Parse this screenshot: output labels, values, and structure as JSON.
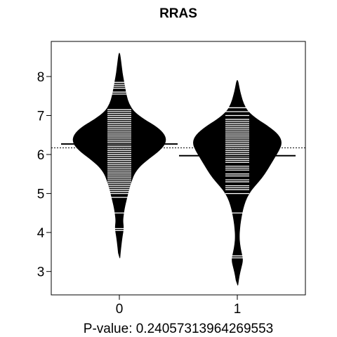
{
  "chart_data": {
    "type": "beanplot",
    "title": "RRAS",
    "xlabel": "P-value: 0.24057313964269553",
    "ylabel": "",
    "ylim": [
      2.4,
      8.9
    ],
    "yticks": [
      3,
      4,
      5,
      6,
      7,
      8
    ],
    "categories": [
      "0",
      "1"
    ],
    "overall_mean": 6.17,
    "grid": false,
    "beans": [
      {
        "category": "0",
        "mean": 6.27,
        "density": [
          [
            3.35,
            0.01
          ],
          [
            3.6,
            0.03
          ],
          [
            3.9,
            0.06
          ],
          [
            4.1,
            0.09
          ],
          [
            4.3,
            0.07
          ],
          [
            4.5,
            0.09
          ],
          [
            4.7,
            0.12
          ],
          [
            4.9,
            0.16
          ],
          [
            5.1,
            0.2
          ],
          [
            5.3,
            0.25
          ],
          [
            5.5,
            0.31
          ],
          [
            5.7,
            0.43
          ],
          [
            5.9,
            0.63
          ],
          [
            6.1,
            0.85
          ],
          [
            6.3,
            0.99
          ],
          [
            6.5,
            0.97
          ],
          [
            6.7,
            0.8
          ],
          [
            6.9,
            0.52
          ],
          [
            7.1,
            0.3
          ],
          [
            7.3,
            0.2
          ],
          [
            7.5,
            0.15
          ],
          [
            7.7,
            0.12
          ],
          [
            7.9,
            0.09
          ],
          [
            8.1,
            0.06
          ],
          [
            8.3,
            0.04
          ],
          [
            8.5,
            0.02
          ],
          [
            8.6,
            0.005
          ]
        ],
        "observations": [
          4.05,
          4.1,
          4.5,
          4.9,
          5.0,
          5.05,
          5.1,
          5.15,
          5.2,
          5.25,
          5.3,
          5.35,
          5.4,
          5.45,
          5.5,
          5.55,
          5.6,
          5.65,
          5.7,
          5.75,
          5.8,
          5.85,
          5.9,
          5.95,
          6.0,
          6.05,
          6.1,
          6.15,
          6.2,
          6.25,
          6.3,
          6.35,
          6.4,
          6.45,
          6.5,
          6.55,
          6.6,
          6.65,
          6.7,
          6.75,
          6.8,
          6.85,
          6.9,
          6.95,
          7.0,
          7.05,
          7.1,
          7.15,
          7.55,
          7.6,
          7.7,
          7.75,
          7.8,
          7.85
        ]
      },
      {
        "category": "1",
        "mean": 5.97,
        "density": [
          [
            2.65,
            0.01
          ],
          [
            2.9,
            0.04
          ],
          [
            3.1,
            0.08
          ],
          [
            3.3,
            0.12
          ],
          [
            3.5,
            0.08
          ],
          [
            3.7,
            0.05
          ],
          [
            3.9,
            0.04
          ],
          [
            4.1,
            0.05
          ],
          [
            4.3,
            0.07
          ],
          [
            4.5,
            0.1
          ],
          [
            4.7,
            0.14
          ],
          [
            4.9,
            0.2
          ],
          [
            5.1,
            0.3
          ],
          [
            5.3,
            0.45
          ],
          [
            5.5,
            0.58
          ],
          [
            5.7,
            0.68
          ],
          [
            5.9,
            0.78
          ],
          [
            6.1,
            0.88
          ],
          [
            6.3,
            0.95
          ],
          [
            6.5,
            0.88
          ],
          [
            6.7,
            0.68
          ],
          [
            6.9,
            0.42
          ],
          [
            7.1,
            0.22
          ],
          [
            7.3,
            0.13
          ],
          [
            7.5,
            0.08
          ],
          [
            7.7,
            0.04
          ],
          [
            7.9,
            0.01
          ]
        ],
        "observations": [
          3.35,
          3.4,
          4.5,
          5.0,
          5.1,
          5.15,
          5.2,
          5.3,
          5.35,
          5.45,
          5.5,
          5.6,
          5.65,
          5.7,
          5.8,
          5.85,
          5.9,
          5.95,
          6.0,
          6.05,
          6.1,
          6.15,
          6.2,
          6.25,
          6.3,
          6.35,
          6.4,
          6.45,
          6.5,
          6.55,
          6.6,
          6.65,
          6.7,
          6.75,
          6.8,
          6.85,
          6.9,
          7.0,
          7.1,
          7.2
        ]
      }
    ]
  }
}
